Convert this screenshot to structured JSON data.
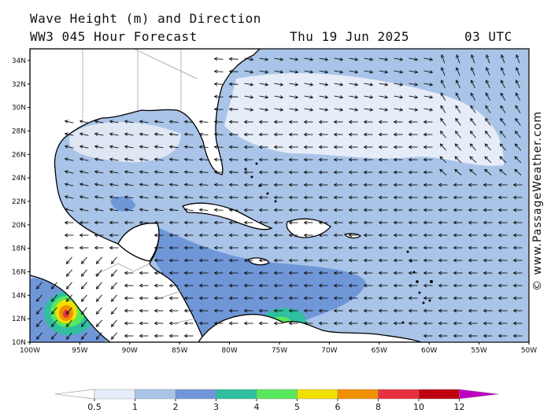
{
  "header": {
    "title": "Wave Height (m) and Direction",
    "model_line": "WW3 045 Hour Forecast",
    "date": "Thu 19 Jun 2025",
    "time": "03 UTC"
  },
  "credit": "© www.PassageWeather.com",
  "axes": {
    "lat_labels": [
      "34N",
      "32N",
      "30N",
      "28N",
      "26N",
      "24N",
      "22N",
      "20N",
      "18N",
      "16N",
      "14N",
      "12N",
      "10N"
    ],
    "lon_labels": [
      "100W",
      "95W",
      "90W",
      "85W",
      "80W",
      "75W",
      "70W",
      "65W",
      "60W",
      "55W",
      "50W"
    ]
  },
  "legend": {
    "labels": [
      "0.5",
      "1",
      "2",
      "3",
      "4",
      "5",
      "6",
      "8",
      "10",
      "12"
    ],
    "colors": [
      "#e6ecf8",
      "#a9c4e8",
      "#6f97d8",
      "#2fbfa0",
      "#58e85e",
      "#f0e000",
      "#f09000",
      "#e83040",
      "#c00010",
      "#c000c0"
    ]
  }
}
